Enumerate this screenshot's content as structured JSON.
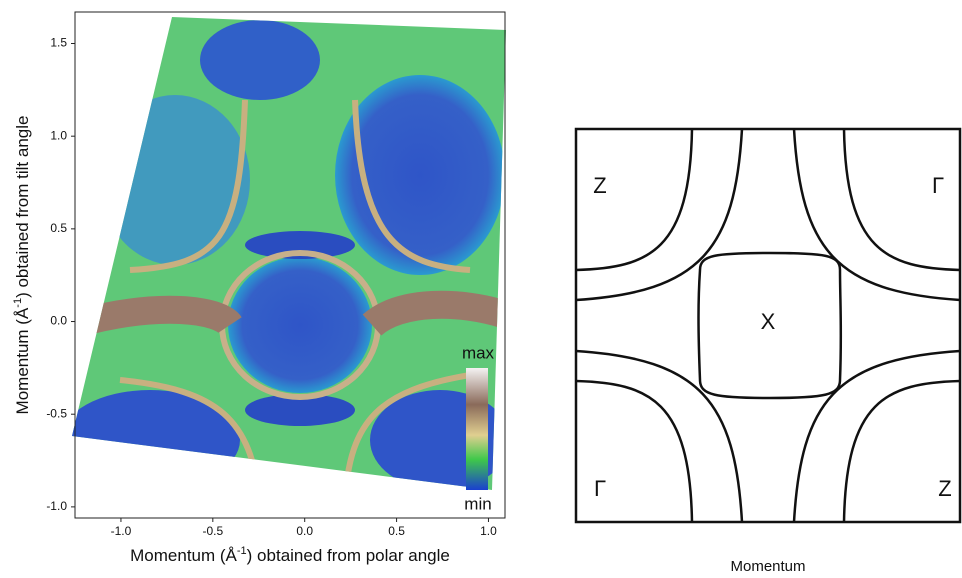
{
  "chart_data": {
    "type": "heatmap",
    "xlabel": {
      "prefix": "Momentum (Å",
      "sup": "-1",
      "suffix": ") obtained from polar angle"
    },
    "ylabel": {
      "prefix": "Momentum (Å",
      "sup": "-1",
      "suffix": ") obtained from tilt  angle"
    },
    "xlim": [
      -1.25,
      1.09
    ],
    "ylim": [
      -1.06,
      1.67
    ],
    "xticks": [
      {
        "value": -1,
        "label": "-1.0"
      },
      -0.5,
      {
        "value": 0,
        "label": "0.0"
      },
      0.5,
      {
        "value": 1,
        "label": "1.0"
      }
    ],
    "yticks": [
      {
        "value": -1,
        "label": "-1.0"
      },
      -0.5,
      {
        "value": 0,
        "label": "0.0"
      },
      0.5,
      {
        "value": 1,
        "label": "1.0"
      },
      1.5
    ],
    "colorbar": {
      "max": "max",
      "min": "min"
    }
  },
  "diagram": {
    "labels": [
      "Z",
      "Γ",
      "X",
      "Γ",
      "Z"
    ],
    "xlabel": "Momentum"
  }
}
